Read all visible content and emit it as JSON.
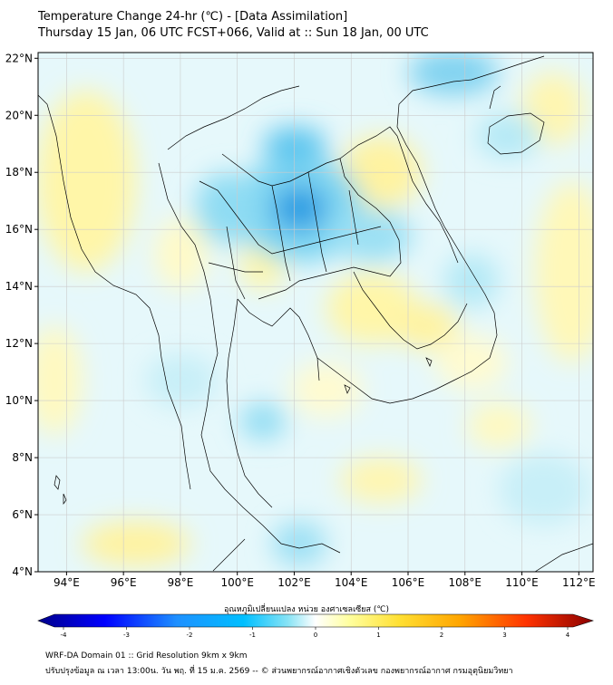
{
  "header": {
    "title_line1": "Temperature Change 24-hr (℃) - [Data Assimilation]",
    "title_line2": "Thursday 15 Jan, 06 UTC FCST+066, Valid at :: Sun 18 Jan, 00 UTC"
  },
  "map": {
    "lat_labels": [
      "22°N",
      "20°N",
      "18°N",
      "16°N",
      "14°N",
      "12°N",
      "10°N",
      "8°N",
      "6°N",
      "4°N"
    ],
    "lon_labels": [
      "94°E",
      "96°E",
      "98°E",
      "100°E",
      "102°E",
      "104°E",
      "106°E",
      "108°E",
      "110°E",
      "112°E"
    ],
    "lat_values": [
      22,
      20,
      18,
      16,
      14,
      12,
      10,
      8,
      6,
      4
    ],
    "lon_values": [
      94,
      96,
      98,
      100,
      102,
      104,
      106,
      108,
      110,
      112
    ],
    "extent": {
      "lon_min": 93,
      "lon_max": 112.5,
      "lat_min": 4,
      "lat_max": 22.2
    },
    "gridlines": true,
    "colors": {
      "land_border": "#000000",
      "frame": "#000000",
      "grid": "#cccccc"
    }
  },
  "colorbar": {
    "title": "อุณหภูมิเปลี่ยนแปลง หน่วย องศาเซลเซียส (℃)",
    "tick_labels": [
      "-4",
      "-3",
      "-2",
      "-1",
      "0",
      "1",
      "2",
      "3",
      "4"
    ],
    "range": [
      -4,
      4
    ],
    "colors": [
      "#00008b",
      "#0000ff",
      "#1e90ff",
      "#00bfff",
      "#87e3f5",
      "#ffffff",
      "#ffffa0",
      "#ffe033",
      "#ffa500",
      "#ff3300",
      "#8b0000"
    ]
  },
  "footer": {
    "line1": "WRF-DA Domain 01 :: Grid Resolution 9km x 9km",
    "line2": "ปรับปรุงข้อมูล ณ เวลา 13:00น. วัน พฤ. ที่ 15 ม.ค. 2569 -- © ส่วนพยากรณ์อากาศเชิงตัวเลข กองพยากรณ์อากาศ กรมอุตุนิยมวิทยา"
  }
}
